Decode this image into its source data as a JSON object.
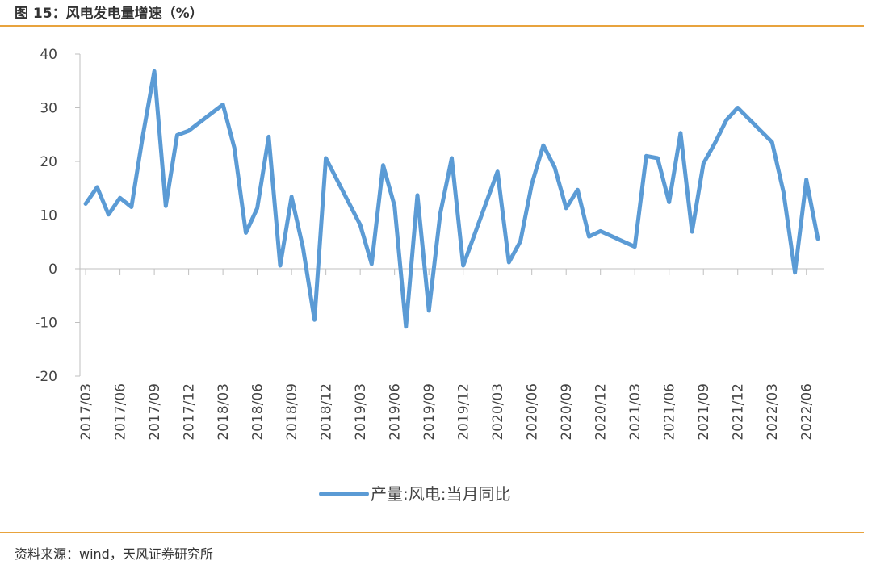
{
  "header": {
    "title": "图 15：风电发电量增速（%）"
  },
  "footer": {
    "source": "资料来源：wind，天风证券研究所"
  },
  "colors": {
    "accent_rule": "#e8a33d",
    "series": "#5b9bd5",
    "axis": "#bfbfbf"
  },
  "chart_data": {
    "type": "line",
    "title": "",
    "xlabel": "",
    "ylabel": "",
    "ylim": [
      -20,
      40
    ],
    "yticks": [
      40,
      30,
      20,
      10,
      0,
      -10,
      -20
    ],
    "grid": false,
    "legend_position": "bottom",
    "x": [
      "2017/03",
      "2017/04",
      "2017/05",
      "2017/06",
      "2017/07",
      "2017/08",
      "2017/09",
      "2017/10",
      "2017/11",
      "2017/12",
      "2018/01",
      "2018/02",
      "2018/03",
      "2018/04",
      "2018/05",
      "2018/06",
      "2018/07",
      "2018/08",
      "2018/09",
      "2018/10",
      "2018/11",
      "2018/12",
      "2019/01",
      "2019/02",
      "2019/03",
      "2019/04",
      "2019/05",
      "2019/06",
      "2019/07",
      "2019/08",
      "2019/09",
      "2019/10",
      "2019/11",
      "2019/12",
      "2020/01",
      "2020/02",
      "2020/03",
      "2020/04",
      "2020/05",
      "2020/06",
      "2020/07",
      "2020/08",
      "2020/09",
      "2020/10",
      "2020/11",
      "2020/12",
      "2021/01",
      "2021/02",
      "2021/03",
      "2021/04",
      "2021/05",
      "2021/06",
      "2021/07",
      "2021/08",
      "2021/09",
      "2021/10",
      "2021/11",
      "2021/12",
      "2022/01",
      "2022/02",
      "2022/03",
      "2022/04",
      "2022/05",
      "2022/06",
      "2022/07"
    ],
    "xtick_labels": [
      "2017/03",
      "2017/06",
      "2017/09",
      "2017/12",
      "2018/03",
      "2018/06",
      "2018/09",
      "2018/12",
      "2019/03",
      "2019/06",
      "2019/09",
      "2019/12",
      "2020/03",
      "2020/06",
      "2020/09",
      "2020/12",
      "2021/03",
      "2021/06",
      "2021/09",
      "2021/12",
      "2022/03",
      "2022/06"
    ],
    "series": [
      {
        "name": "产量:风电:当月同比",
        "values": [
          12.1,
          15.2,
          10.1,
          13.2,
          11.5,
          24.8,
          36.8,
          11.7,
          24.9,
          25.7,
          null,
          null,
          30.6,
          22.5,
          6.7,
          11.3,
          24.6,
          0.6,
          13.4,
          3.9,
          -9.5,
          20.6,
          null,
          null,
          8.2,
          0.9,
          19.3,
          11.7,
          -10.8,
          13.7,
          -7.8,
          10.3,
          20.6,
          0.6,
          null,
          null,
          18.1,
          1.2,
          5.1,
          15.8,
          23.0,
          18.9,
          11.3,
          14.7,
          6.0,
          7.0,
          null,
          null,
          4.1,
          21.0,
          20.6,
          12.4,
          25.3,
          6.9,
          19.6,
          23.4,
          27.7,
          30.0,
          null,
          null,
          23.6,
          14.3,
          -0.7,
          16.6,
          5.6
        ]
      }
    ]
  }
}
